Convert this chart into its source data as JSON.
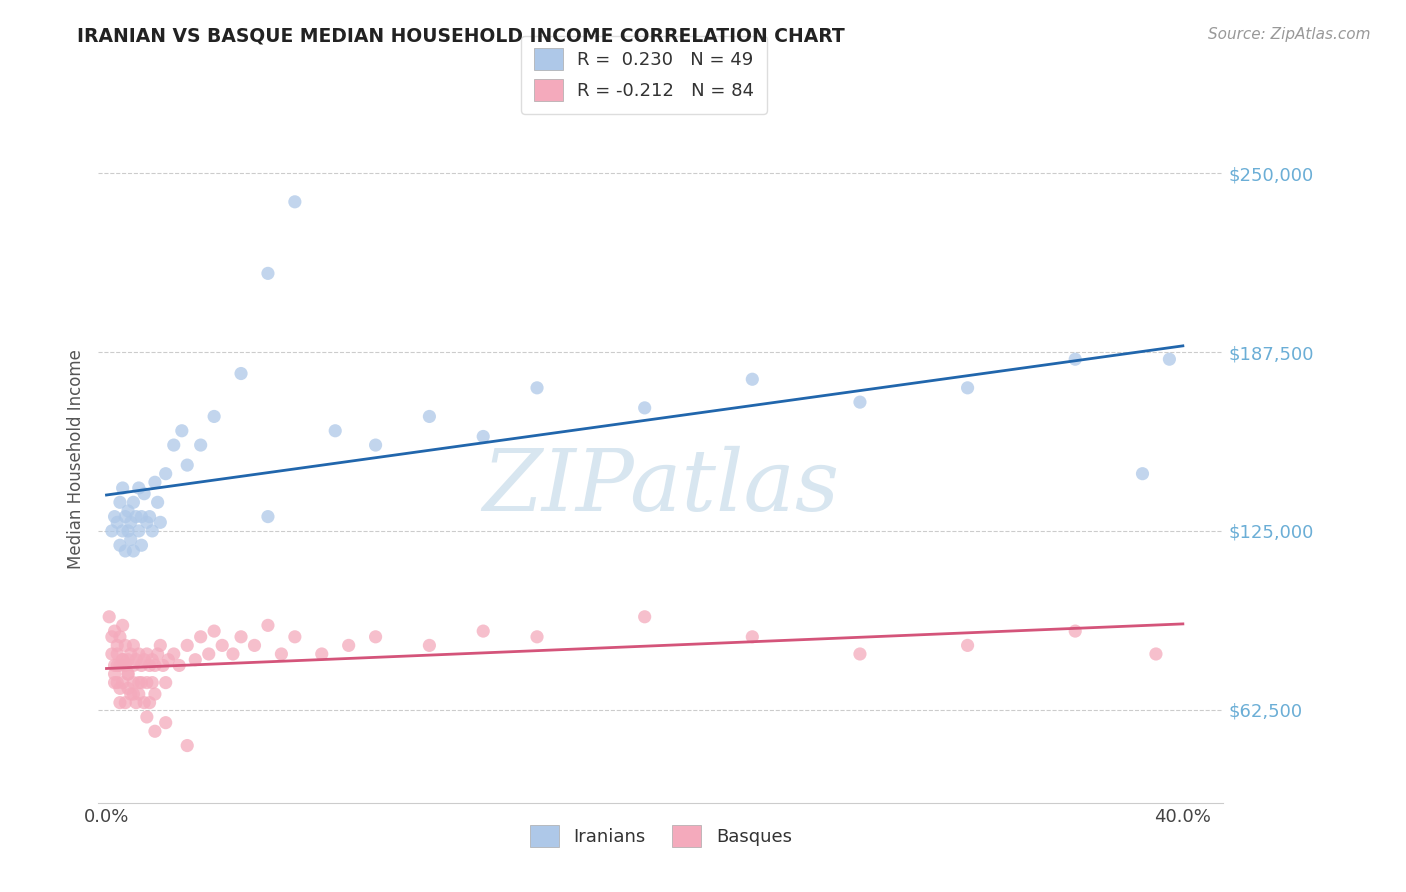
{
  "title": "IRANIAN VS BASQUE MEDIAN HOUSEHOLD INCOME CORRELATION CHART",
  "source_text": "Source: ZipAtlas.com",
  "ylabel": "Median Household Income",
  "xlim": [
    -0.003,
    0.415
  ],
  "ylim": [
    30000,
    270000
  ],
  "ytick_vals": [
    62500,
    125000,
    187500,
    250000
  ],
  "ytick_labels": [
    "$62,500",
    "$125,000",
    "$187,500",
    "$250,000"
  ],
  "xtick_vals": [
    0.0,
    0.4
  ],
  "xtick_labels": [
    "0.0%",
    "40.0%"
  ],
  "blue_scatter": "#aec8e8",
  "pink_scatter": "#f4aabc",
  "line_blue": "#2166ac",
  "line_pink": "#d4547a",
  "tick_color": "#6baed6",
  "grid_color": "#cccccc",
  "watermark_color": "#d8e6f0",
  "title_color": "#222222",
  "iranians_x": [
    0.002,
    0.003,
    0.004,
    0.005,
    0.005,
    0.006,
    0.006,
    0.007,
    0.007,
    0.008,
    0.008,
    0.009,
    0.009,
    0.01,
    0.01,
    0.011,
    0.012,
    0.012,
    0.013,
    0.013,
    0.014,
    0.015,
    0.016,
    0.017,
    0.018,
    0.019,
    0.02,
    0.022,
    0.025,
    0.028,
    0.03,
    0.035,
    0.04,
    0.05,
    0.06,
    0.07,
    0.085,
    0.1,
    0.12,
    0.14,
    0.16,
    0.2,
    0.24,
    0.28,
    0.32,
    0.36,
    0.385,
    0.395,
    0.06
  ],
  "iranians_y": [
    125000,
    130000,
    128000,
    120000,
    135000,
    125000,
    140000,
    118000,
    130000,
    125000,
    132000,
    122000,
    128000,
    135000,
    118000,
    130000,
    140000,
    125000,
    130000,
    120000,
    138000,
    128000,
    130000,
    125000,
    142000,
    135000,
    128000,
    145000,
    155000,
    160000,
    148000,
    155000,
    165000,
    180000,
    215000,
    240000,
    160000,
    155000,
    165000,
    158000,
    175000,
    168000,
    178000,
    170000,
    175000,
    185000,
    145000,
    185000,
    130000
  ],
  "basques_x": [
    0.001,
    0.002,
    0.002,
    0.003,
    0.003,
    0.003,
    0.004,
    0.004,
    0.004,
    0.005,
    0.005,
    0.005,
    0.005,
    0.006,
    0.006,
    0.006,
    0.007,
    0.007,
    0.007,
    0.008,
    0.008,
    0.008,
    0.009,
    0.009,
    0.01,
    0.01,
    0.01,
    0.011,
    0.011,
    0.012,
    0.012,
    0.013,
    0.013,
    0.014,
    0.014,
    0.015,
    0.015,
    0.016,
    0.016,
    0.017,
    0.017,
    0.018,
    0.018,
    0.019,
    0.02,
    0.021,
    0.022,
    0.023,
    0.025,
    0.027,
    0.03,
    0.033,
    0.035,
    0.038,
    0.04,
    0.043,
    0.047,
    0.05,
    0.055,
    0.06,
    0.065,
    0.07,
    0.08,
    0.09,
    0.1,
    0.12,
    0.14,
    0.16,
    0.2,
    0.24,
    0.28,
    0.32,
    0.36,
    0.39,
    0.003,
    0.004,
    0.006,
    0.008,
    0.01,
    0.012,
    0.015,
    0.018,
    0.022,
    0.03
  ],
  "basques_y": [
    95000,
    88000,
    82000,
    78000,
    90000,
    75000,
    82000,
    72000,
    85000,
    78000,
    70000,
    88000,
    65000,
    80000,
    72000,
    92000,
    78000,
    65000,
    85000,
    80000,
    70000,
    75000,
    82000,
    68000,
    85000,
    72000,
    78000,
    80000,
    65000,
    82000,
    68000,
    78000,
    72000,
    80000,
    65000,
    82000,
    72000,
    78000,
    65000,
    80000,
    72000,
    78000,
    68000,
    82000,
    85000,
    78000,
    72000,
    80000,
    82000,
    78000,
    85000,
    80000,
    88000,
    82000,
    90000,
    85000,
    82000,
    88000,
    85000,
    92000,
    82000,
    88000,
    82000,
    85000,
    88000,
    85000,
    90000,
    88000,
    95000,
    88000,
    82000,
    85000,
    90000,
    82000,
    72000,
    78000,
    80000,
    75000,
    68000,
    72000,
    60000,
    55000,
    58000,
    50000
  ]
}
